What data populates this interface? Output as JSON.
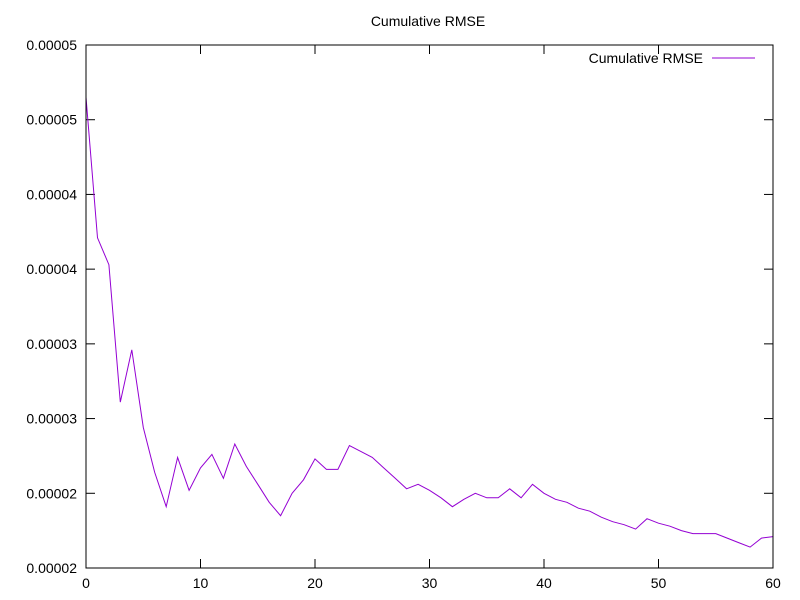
{
  "chart_data": {
    "type": "line",
    "title": "Cumulative RMSE",
    "xlabel": "",
    "ylabel": "",
    "xlim": [
      0,
      60
    ],
    "ylim": [
      1.5e-05,
      5e-05
    ],
    "grid": false,
    "legend_position": "top-right",
    "x_ticks": [
      0,
      10,
      20,
      30,
      40,
      50,
      60
    ],
    "x_tick_labels": [
      "0",
      "10",
      "20",
      "30",
      "40",
      "50",
      "60"
    ],
    "y_ticks": [
      1.5e-05,
      2e-05,
      2.5e-05,
      3e-05,
      3.5e-05,
      4e-05,
      4.5e-05,
      5e-05
    ],
    "y_tick_labels": [
      "0.00002",
      "0.00002",
      "0.00003",
      "0.00003",
      "0.00004",
      "0.00004",
      "0.00005",
      "0.00005"
    ],
    "series": [
      {
        "name": "Cumulative RMSE",
        "color": "#9400d3",
        "x": [
          0,
          1,
          2,
          3,
          4,
          5,
          6,
          7,
          8,
          9,
          10,
          11,
          12,
          13,
          14,
          15,
          16,
          17,
          18,
          19,
          20,
          21,
          22,
          23,
          24,
          25,
          26,
          27,
          28,
          29,
          30,
          31,
          32,
          33,
          34,
          35,
          36,
          37,
          38,
          39,
          40,
          41,
          42,
          43,
          44,
          45,
          46,
          47,
          48,
          49,
          50,
          51,
          52,
          53,
          54,
          55,
          56,
          57,
          58,
          59,
          60
        ],
        "y": [
          4.65e-05,
          3.71e-05,
          3.53e-05,
          2.61e-05,
          2.96e-05,
          2.44e-05,
          2.14e-05,
          1.91e-05,
          2.24e-05,
          2.02e-05,
          2.17e-05,
          2.26e-05,
          2.1e-05,
          2.33e-05,
          2.18e-05,
          2.06e-05,
          1.94e-05,
          1.85e-05,
          2e-05,
          2.09e-05,
          2.23e-05,
          2.16e-05,
          2.16e-05,
          2.32e-05,
          2.28e-05,
          2.24e-05,
          2.17e-05,
          2.1e-05,
          2.03e-05,
          2.06e-05,
          2.02e-05,
          1.97e-05,
          1.91e-05,
          1.96e-05,
          2e-05,
          1.97e-05,
          1.97e-05,
          2.03e-05,
          1.97e-05,
          2.06e-05,
          2e-05,
          1.96e-05,
          1.94e-05,
          1.9e-05,
          1.88e-05,
          1.84e-05,
          1.81e-05,
          1.79e-05,
          1.76e-05,
          1.83e-05,
          1.8e-05,
          1.78e-05,
          1.75e-05,
          1.73e-05,
          1.73e-05,
          1.73e-05,
          1.7e-05,
          1.67e-05,
          1.64e-05,
          1.7e-05,
          1.71e-05
        ]
      }
    ]
  }
}
